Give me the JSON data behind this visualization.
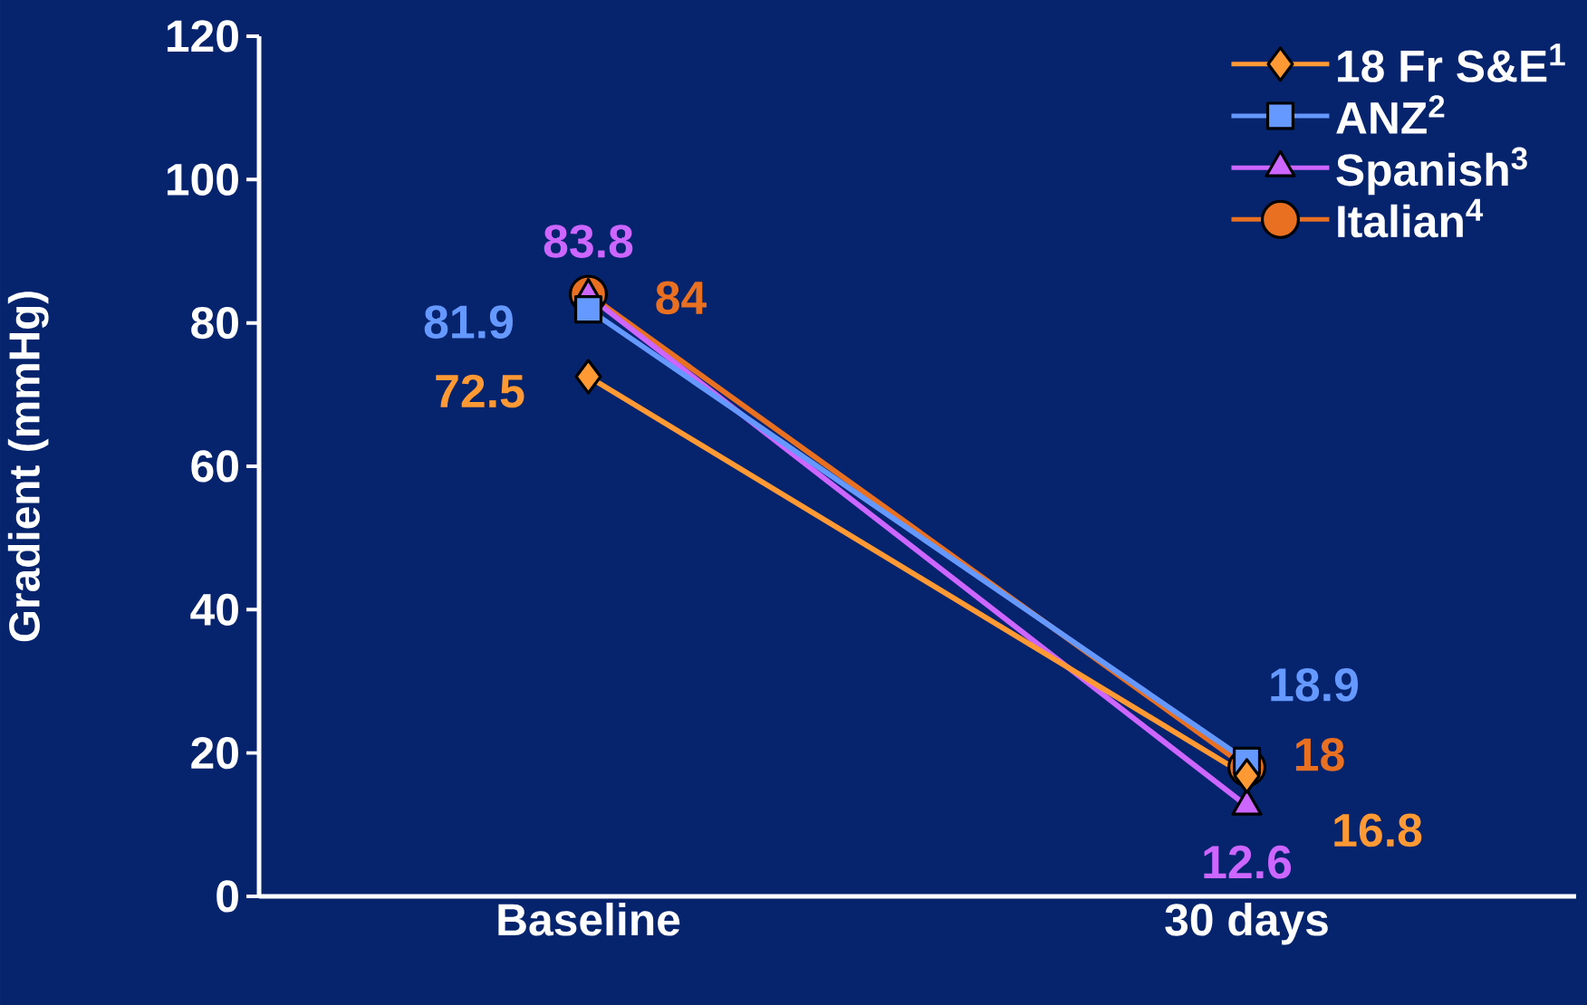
{
  "chart_data": {
    "type": "line",
    "ylabel": "Gradient (mmHg)",
    "categories": [
      "Baseline",
      "30 days"
    ],
    "series": [
      {
        "name": "18 Fr S&E$^{1}$",
        "color": "#ff9933",
        "marker": "diamond",
        "values": [
          72.5,
          16.8
        ]
      },
      {
        "name": "ANZ$^{2}$",
        "color": "#6699ff",
        "marker": "square",
        "values": [
          81.9,
          18.9
        ]
      },
      {
        "name": "Spanish$^{3}$",
        "color": "#cc66ff",
        "marker": "triangle",
        "values": [
          83.8,
          12.6
        ]
      },
      {
        "name": "Italian$^{4}$",
        "color": "#e87020",
        "marker": "circle",
        "values": [
          84,
          18
        ]
      }
    ],
    "ylim": [
      0,
      120
    ],
    "yticks": [
      0,
      20,
      40,
      60,
      80,
      100,
      120
    ],
    "data_labels": true,
    "legend": "top right",
    "grid": false
  }
}
